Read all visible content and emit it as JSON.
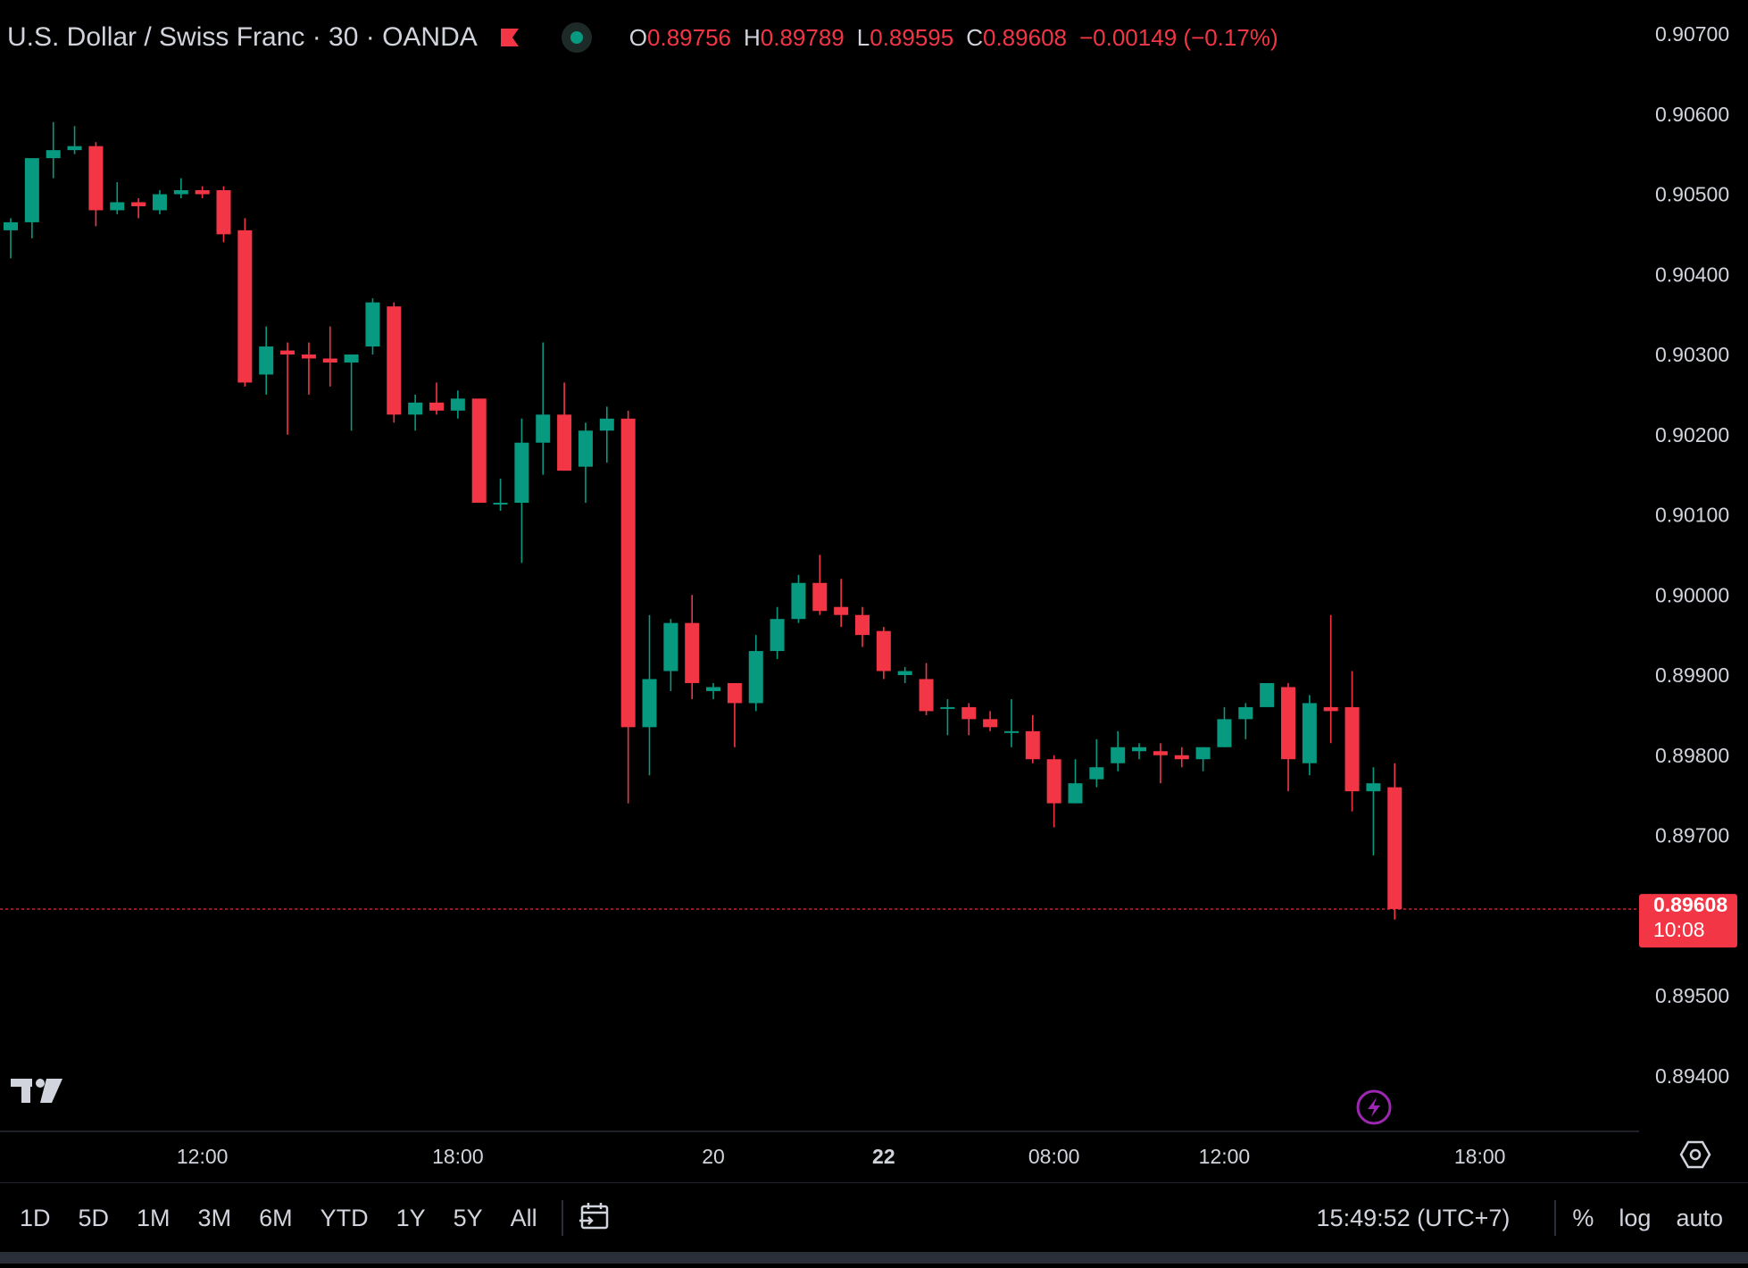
{
  "header": {
    "symbol": "U.S. Dollar / Swiss Franc · 30 · OANDA",
    "open_key": "O",
    "open": "0.89756",
    "high_key": "H",
    "high": "0.89789",
    "low_key": "L",
    "low": "0.89595",
    "close_key": "C",
    "close": "0.89608",
    "change": "−0.00149 (−0.17%)"
  },
  "price_label": {
    "price": "0.89608",
    "countdown": "10:08"
  },
  "ranges": [
    "1D",
    "5D",
    "1M",
    "3M",
    "6M",
    "YTD",
    "1Y",
    "5Y",
    "All"
  ],
  "status": {
    "clock": "15:49:52 (UTC+7)",
    "percent": "%",
    "log": "log",
    "auto": "auto"
  },
  "colors": {
    "up": "#089981",
    "down": "#f23645",
    "background": "#000000",
    "text": "#d1d4dc",
    "flash": "#9c27b0"
  },
  "icons": [
    "flag-icon",
    "market-status-icon",
    "tradingview-logo-icon",
    "flash-icon",
    "date-range-icon",
    "settings-icon"
  ],
  "chart_data": {
    "type": "candlestick",
    "title": "U.S. Dollar / Swiss Franc · 30 · OANDA",
    "interval_minutes": 30,
    "ylim": [
      0.8935,
      0.9072
    ],
    "y_ticks": [
      "0.90700",
      "0.90600",
      "0.90500",
      "0.90400",
      "0.90300",
      "0.90200",
      "0.90100",
      "0.90000",
      "0.89900",
      "0.89800",
      "0.89700",
      "0.89500",
      "0.89400"
    ],
    "x_ticks": [
      {
        "label": "12:00",
        "index": 9,
        "bold": false
      },
      {
        "label": "18:00",
        "index": 21,
        "bold": false
      },
      {
        "label": "20",
        "index": 33,
        "bold": false
      },
      {
        "label": "22",
        "index": 41,
        "bold": true
      },
      {
        "label": "08:00",
        "index": 49,
        "bold": false
      },
      {
        "label": "12:00",
        "index": 57,
        "bold": false
      },
      {
        "label": "18:00",
        "index": 69,
        "bold": false
      }
    ],
    "last_price": 0.89608,
    "candles": [
      [
        0.90455,
        0.9047,
        0.9042,
        0.90465
      ],
      [
        0.90465,
        0.9054,
        0.90445,
        0.90545
      ],
      [
        0.90545,
        0.9059,
        0.9052,
        0.90555
      ],
      [
        0.90555,
        0.90585,
        0.9055,
        0.9056
      ],
      [
        0.9056,
        0.90565,
        0.9046,
        0.9048
      ],
      [
        0.9048,
        0.90515,
        0.90475,
        0.9049
      ],
      [
        0.9049,
        0.90495,
        0.9047,
        0.90485
      ],
      [
        0.9048,
        0.90505,
        0.90475,
        0.905
      ],
      [
        0.905,
        0.9052,
        0.90495,
        0.90505
      ],
      [
        0.90505,
        0.9051,
        0.90495,
        0.905
      ],
      [
        0.90505,
        0.9051,
        0.9044,
        0.9045
      ],
      [
        0.90455,
        0.9047,
        0.9026,
        0.90265
      ],
      [
        0.90275,
        0.90335,
        0.9025,
        0.9031
      ],
      [
        0.90305,
        0.90315,
        0.902,
        0.903
      ],
      [
        0.903,
        0.90315,
        0.9025,
        0.90295
      ],
      [
        0.90295,
        0.90335,
        0.9026,
        0.9029
      ],
      [
        0.9029,
        0.903,
        0.90205,
        0.903
      ],
      [
        0.9031,
        0.9037,
        0.903,
        0.90365
      ],
      [
        0.9036,
        0.90365,
        0.90215,
        0.90225
      ],
      [
        0.90225,
        0.9025,
        0.90205,
        0.9024
      ],
      [
        0.9024,
        0.90265,
        0.90225,
        0.9023
      ],
      [
        0.9023,
        0.90255,
        0.9022,
        0.90245
      ],
      [
        0.90245,
        0.9024,
        0.90115,
        0.90115
      ],
      [
        0.90115,
        0.90145,
        0.90105,
        0.90115
      ],
      [
        0.90115,
        0.9022,
        0.9004,
        0.9019
      ],
      [
        0.9019,
        0.90315,
        0.9015,
        0.90225
      ],
      [
        0.90225,
        0.90265,
        0.90155,
        0.90155
      ],
      [
        0.9016,
        0.90215,
        0.90115,
        0.90205
      ],
      [
        0.90205,
        0.90235,
        0.90165,
        0.9022
      ],
      [
        0.9022,
        0.9023,
        0.8974,
        0.89835
      ],
      [
        0.89835,
        0.89975,
        0.89775,
        0.89895
      ],
      [
        0.89905,
        0.8997,
        0.8988,
        0.89965
      ],
      [
        0.89965,
        0.9,
        0.8987,
        0.8989
      ],
      [
        0.8988,
        0.8989,
        0.8987,
        0.89885
      ],
      [
        0.8989,
        0.89885,
        0.8981,
        0.89865
      ],
      [
        0.89865,
        0.8995,
        0.89855,
        0.8993
      ],
      [
        0.8993,
        0.89985,
        0.8992,
        0.8997
      ],
      [
        0.8997,
        0.90025,
        0.89965,
        0.90015
      ],
      [
        0.90015,
        0.9005,
        0.89975,
        0.8998
      ],
      [
        0.89985,
        0.9002,
        0.8996,
        0.89975
      ],
      [
        0.89975,
        0.89985,
        0.89935,
        0.8995
      ],
      [
        0.89955,
        0.8996,
        0.89895,
        0.89905
      ],
      [
        0.899,
        0.8991,
        0.8989,
        0.89905
      ],
      [
        0.89895,
        0.89915,
        0.8985,
        0.89855
      ],
      [
        0.8986,
        0.8987,
        0.89825,
        0.8986
      ],
      [
        0.8986,
        0.89865,
        0.89825,
        0.89845
      ],
      [
        0.89845,
        0.89855,
        0.8983,
        0.89835
      ],
      [
        0.8983,
        0.8987,
        0.8981,
        0.8983
      ],
      [
        0.8983,
        0.8985,
        0.8979,
        0.89795
      ],
      [
        0.89795,
        0.898,
        0.8971,
        0.8974
      ],
      [
        0.8974,
        0.89795,
        0.8974,
        0.89765
      ],
      [
        0.8977,
        0.8982,
        0.8976,
        0.89785
      ],
      [
        0.8979,
        0.8983,
        0.8978,
        0.8981
      ],
      [
        0.89805,
        0.89815,
        0.89795,
        0.8981
      ],
      [
        0.89805,
        0.89815,
        0.89765,
        0.898
      ],
      [
        0.898,
        0.8981,
        0.89785,
        0.89795
      ],
      [
        0.89795,
        0.8981,
        0.8978,
        0.8981
      ],
      [
        0.8981,
        0.8986,
        0.8981,
        0.89845
      ],
      [
        0.89845,
        0.89865,
        0.8982,
        0.8986
      ],
      [
        0.8986,
        0.8989,
        0.8986,
        0.8989
      ],
      [
        0.89885,
        0.8989,
        0.89755,
        0.89795
      ],
      [
        0.8979,
        0.89875,
        0.89775,
        0.89865
      ],
      [
        0.8986,
        0.89975,
        0.89815,
        0.89855
      ],
      [
        0.8986,
        0.89905,
        0.8973,
        0.89755
      ],
      [
        0.89755,
        0.89785,
        0.89675,
        0.89765
      ],
      [
        0.8976,
        0.8979,
        0.89595,
        0.89608
      ]
    ]
  }
}
